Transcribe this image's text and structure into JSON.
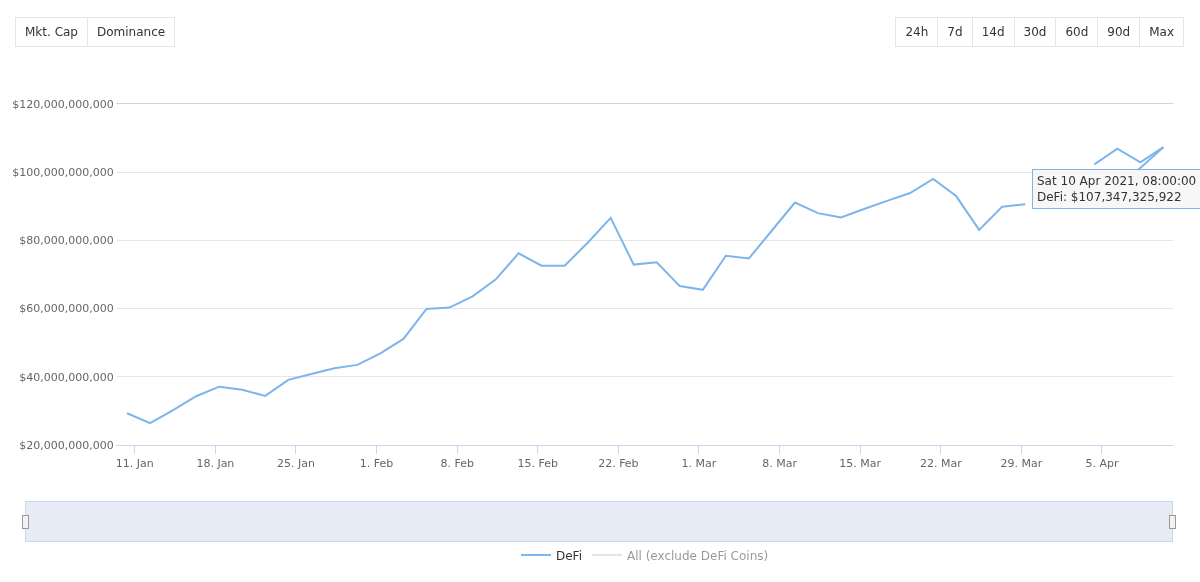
{
  "chart_data": {
    "type": "line",
    "annotations": [
      {
        "text": "Sat 10 Apr 2021, 08:00:00\nDeFi: $107,347,325,922",
        "x": "2021-04-10T08:00",
        "y": 107347325922
      },
      "Mkt. Cap",
      "Dominance",
      "24h",
      "7d",
      "14d",
      "30d",
      "60d",
      "90d",
      "Max"
    ],
    "x": [
      "2021-01-10T08:00",
      "2021-01-12T08:00",
      "2021-01-14T08:00",
      "2021-01-16T08:00",
      "2021-01-18T08:00",
      "2021-01-20T08:00",
      "2021-01-22T08:00",
      "2021-01-24T08:00",
      "2021-01-26T08:00",
      "2021-01-28T08:00",
      "2021-01-30T08:00",
      "2021-02-01T08:00",
      "2021-02-03T08:00",
      "2021-02-05T08:00",
      "2021-02-07T08:00",
      "2021-02-09T08:00",
      "2021-02-11T08:00",
      "2021-02-13T08:00",
      "2021-02-15T08:00",
      "2021-02-17T08:00",
      "2021-02-19T08:00",
      "2021-02-21T08:00",
      "2021-02-23T08:00",
      "2021-02-25T08:00",
      "2021-02-27T08:00",
      "2021-03-01T08:00",
      "2021-03-03T08:00",
      "2021-03-05T08:00",
      "2021-03-07T08:00",
      "2021-03-09T08:00",
      "2021-03-11T08:00",
      "2021-03-13T08:00",
      "2021-03-15T08:00",
      "2021-03-17T08:00",
      "2021-03-19T08:00",
      "2021-03-21T08:00",
      "2021-03-23T08:00",
      "2021-03-25T08:00",
      "2021-03-27T08:00",
      "2021-03-29T08:00",
      "2021-03-31T08:00",
      "2021-04-02T08:00",
      "2021-04-04T08:00",
      "2021-04-06T08:00",
      "2021-04-08T08:00",
      "2021-04-10T08:00"
    ],
    "series": [
      {
        "name": "DeFi",
        "color": "#7cb5ec",
        "values": [
          29300000000,
          26400000000,
          30200000000,
          34300000000,
          37100000000,
          36200000000,
          34400000000,
          39100000000,
          40800000000,
          42500000000,
          43500000000,
          46900000000,
          51100000000,
          59900000000,
          60300000000,
          63600000000,
          68500000000,
          76200000000,
          72600000000,
          72600000000,
          79300000000,
          86600000000,
          72900000000,
          73600000000,
          66600000000,
          65500000000,
          75500000000,
          74700000000,
          82900000000,
          91100000000,
          88000000000,
          86700000000,
          89200000000,
          91600000000,
          93900000000,
          98000000000,
          93000000000,
          83100000000,
          89900000000,
          90600000000,
          null,
          null,
          102300000000,
          106900000000,
          102900000000,
          107347325922
        ]
      },
      {
        "name": "All (exclude DeFi Coins)",
        "color": "#cccccc",
        "values": [
          null,
          null,
          null,
          null,
          null,
          null,
          null,
          null,
          null,
          null,
          null,
          null,
          null,
          null,
          null,
          null,
          null,
          null,
          null,
          null,
          null,
          null,
          null,
          null,
          null,
          null,
          null,
          null,
          null,
          null,
          null,
          null,
          null,
          null,
          null,
          null,
          null,
          null,
          null,
          null,
          null,
          null,
          null,
          null,
          null,
          null
        ]
      }
    ],
    "xlim": [
      "2021-01-09T11:00",
      "2021-04-11T04:00"
    ],
    "xticks": [
      {
        "value": "2021-01-11",
        "label": "11. Jan"
      },
      {
        "value": "2021-01-18",
        "label": "18. Jan"
      },
      {
        "value": "2021-01-25",
        "label": "25. Jan"
      },
      {
        "value": "2021-02-01",
        "label": "1. Feb"
      },
      {
        "value": "2021-02-08",
        "label": "8. Feb"
      },
      {
        "value": "2021-02-15",
        "label": "15. Feb"
      },
      {
        "value": "2021-02-22",
        "label": "22. Feb"
      },
      {
        "value": "2021-03-01",
        "label": "1. Mar"
      },
      {
        "value": "2021-03-08",
        "label": "8. Mar"
      },
      {
        "value": "2021-03-15",
        "label": "15. Mar"
      },
      {
        "value": "2021-03-22",
        "label": "22. Mar"
      },
      {
        "value": "2021-03-29",
        "label": "29. Mar"
      },
      {
        "value": "2021-04-05",
        "label": "5. Apr"
      }
    ],
    "ylim": [
      20000000000,
      120000000000
    ],
    "yticks": [
      {
        "value": 20000000000,
        "label": "$20,000,000,000"
      },
      {
        "value": 40000000000,
        "label": "$40,000,000,000"
      },
      {
        "value": 60000000000,
        "label": "$60,000,000,000"
      },
      {
        "value": 80000000000,
        "label": "$80,000,000,000"
      },
      {
        "value": 100000000000,
        "label": "$100,000,000,000"
      },
      {
        "value": 120000000000,
        "label": "$120,000,000,000"
      }
    ],
    "grid": "y",
    "legend": "bottom",
    "marker": "none",
    "line_style": "solid"
  }
}
